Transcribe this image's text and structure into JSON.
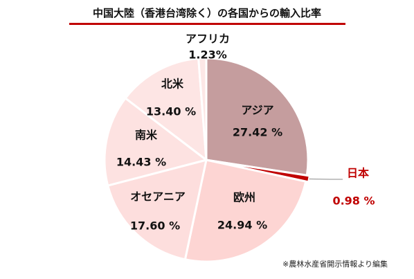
{
  "title": "中国大陸（香港台湾除く）の各国からの輸入比率",
  "note": "※農林水産省開示情報より編集",
  "colors": {
    "title_bar": "#c00000",
    "highlight_label": "#c00000",
    "slice_edge": "#ffffff",
    "leader_line": "#a0a0a0"
  },
  "chart_data": {
    "type": "pie",
    "start_angle_deg": 0,
    "direction": "clockwise",
    "unit": "%",
    "slices": [
      {
        "label": "アジア",
        "value": 27.42,
        "value_text": "27.42 %",
        "color": "#c59d9e",
        "label_color": "#111111",
        "exploded": false
      },
      {
        "label": "日本",
        "value": 0.98,
        "value_text": "0.98 %",
        "color": "#c00000",
        "label_color": "#c00000",
        "exploded": true
      },
      {
        "label": "欧州",
        "value": 24.94,
        "value_text": "24.94 %",
        "color": "#fdd5d3",
        "label_color": "#111111",
        "exploded": false
      },
      {
        "label": "オセアニア",
        "value": 17.6,
        "value_text": "17.60 %",
        "color": "#fddedd",
        "label_color": "#111111",
        "exploded": false
      },
      {
        "label": "南米",
        "value": 14.43,
        "value_text": "14.43 %",
        "color": "#fde2e1",
        "label_color": "#111111",
        "exploded": false
      },
      {
        "label": "北米",
        "value": 13.4,
        "value_text": "13.40 %",
        "color": "#fde5e4",
        "label_color": "#111111",
        "exploded": false
      },
      {
        "label": "アフリカ",
        "value": 1.23,
        "value_text": "1.23%",
        "color": "#fde7e6",
        "label_color": "#111111",
        "exploded": false
      }
    ]
  }
}
